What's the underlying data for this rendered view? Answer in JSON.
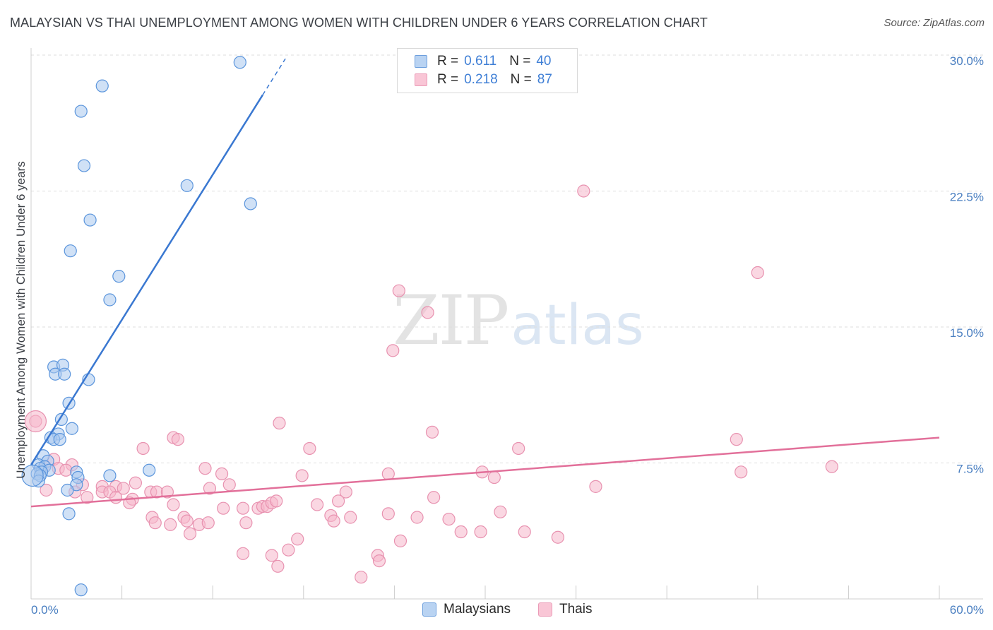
{
  "header": {
    "title": "MALAYSIAN VS THAI UNEMPLOYMENT AMONG WOMEN WITH CHILDREN UNDER 6 YEARS CORRELATION CHART",
    "source": "Source: ZipAtlas.com"
  },
  "watermark": {
    "zip": "ZIP",
    "atlas": "atlas"
  },
  "legend": {
    "rows": [
      {
        "r_label": "R =",
        "r_value": "0.611",
        "n_label": "N =",
        "n_value": "40"
      },
      {
        "r_label": "R =",
        "r_value": "0.218",
        "n_label": "N =",
        "n_value": "87"
      }
    ]
  },
  "bottom_legend": {
    "malaysians": "Malaysians",
    "thais": "Thais"
  },
  "colors": {
    "blue_fill": "#aac8ee",
    "blue_stroke": "#5b95dc",
    "blue_line": "#3a78d1",
    "pink_fill": "#f6b7cb",
    "pink_stroke": "#e892b0",
    "pink_line": "#e2709a",
    "axis_text": "#4a7fc1",
    "grid": "#dddddd"
  },
  "chart_data": {
    "type": "scatter",
    "title": "MALAYSIAN VS THAI UNEMPLOYMENT AMONG WOMEN WITH CHILDREN UNDER 6 YEARS CORRELATION CHART",
    "ylabel": "Unemployment Among Women with Children Under 6 years",
    "xlabel": "",
    "xlim": [
      0,
      60
    ],
    "ylim": [
      0,
      30
    ],
    "x_tick_labels": [
      "0.0%",
      "60.0%"
    ],
    "y_ticks": [
      7.5,
      15.0,
      22.5,
      30.0
    ],
    "y_tick_labels": [
      "7.5%",
      "15.0%",
      "22.5%",
      "30.0%"
    ],
    "series": [
      {
        "name": "Malaysians",
        "r": 0.611,
        "n": 40,
        "trend": {
          "x": [
            0.0,
            15.3
          ],
          "y": [
            7.4,
            27.8
          ],
          "dashed_to": [
            16.8,
            29.8
          ]
        },
        "points": [
          [
            13.8,
            29.6
          ],
          [
            4.7,
            28.3
          ],
          [
            3.3,
            26.9
          ],
          [
            3.5,
            23.9
          ],
          [
            10.3,
            22.8
          ],
          [
            14.5,
            21.8
          ],
          [
            3.9,
            20.9
          ],
          [
            2.6,
            19.2
          ],
          [
            5.8,
            17.8
          ],
          [
            5.2,
            16.5
          ],
          [
            1.5,
            12.8
          ],
          [
            2.1,
            12.9
          ],
          [
            1.6,
            12.4
          ],
          [
            2.2,
            12.4
          ],
          [
            3.8,
            12.1
          ],
          [
            2.5,
            10.8
          ],
          [
            2.0,
            9.9
          ],
          [
            2.7,
            9.4
          ],
          [
            1.8,
            9.1
          ],
          [
            1.3,
            8.9
          ],
          [
            1.5,
            8.8
          ],
          [
            1.9,
            8.8
          ],
          [
            0.8,
            7.9
          ],
          [
            1.1,
            7.6
          ],
          [
            0.5,
            7.4
          ],
          [
            0.9,
            7.3
          ],
          [
            0.6,
            7.2
          ],
          [
            1.2,
            7.1
          ],
          [
            0.7,
            7.0
          ],
          [
            0.4,
            6.9
          ],
          [
            0.6,
            6.8
          ],
          [
            0.5,
            6.5
          ],
          [
            3.0,
            7.0
          ],
          [
            7.8,
            7.1
          ],
          [
            5.2,
            6.8
          ],
          [
            3.1,
            6.7
          ],
          [
            3.0,
            6.3
          ],
          [
            2.4,
            6.0
          ],
          [
            2.5,
            4.7
          ],
          [
            3.3,
            0.5
          ]
        ]
      },
      {
        "name": "Thais",
        "r": 0.218,
        "n": 87,
        "trend": {
          "x": [
            0.0,
            60.0
          ],
          "y": [
            5.1,
            8.9
          ]
        },
        "points": [
          [
            0.3,
            9.8
          ],
          [
            36.5,
            22.5
          ],
          [
            48.0,
            18.0
          ],
          [
            24.3,
            17.0
          ],
          [
            26.2,
            15.8
          ],
          [
            23.9,
            13.7
          ],
          [
            16.4,
            9.7
          ],
          [
            26.5,
            9.2
          ],
          [
            9.4,
            8.9
          ],
          [
            9.7,
            8.8
          ],
          [
            46.6,
            8.8
          ],
          [
            7.4,
            8.3
          ],
          [
            18.4,
            8.3
          ],
          [
            32.2,
            8.3
          ],
          [
            52.9,
            7.3
          ],
          [
            1.5,
            7.7
          ],
          [
            1.8,
            7.2
          ],
          [
            0.9,
            7.3
          ],
          [
            2.7,
            7.4
          ],
          [
            11.5,
            7.2
          ],
          [
            12.6,
            6.9
          ],
          [
            17.9,
            6.8
          ],
          [
            23.6,
            6.9
          ],
          [
            29.8,
            7.0
          ],
          [
            30.6,
            6.7
          ],
          [
            46.9,
            7.0
          ],
          [
            37.3,
            6.2
          ],
          [
            3.4,
            6.3
          ],
          [
            4.7,
            6.2
          ],
          [
            5.6,
            6.2
          ],
          [
            6.1,
            6.1
          ],
          [
            6.9,
            6.4
          ],
          [
            11.8,
            6.1
          ],
          [
            13.1,
            6.3
          ],
          [
            2.9,
            5.9
          ],
          [
            4.7,
            5.9
          ],
          [
            5.2,
            5.9
          ],
          [
            6.7,
            5.5
          ],
          [
            7.9,
            5.9
          ],
          [
            8.3,
            5.9
          ],
          [
            9.0,
            5.9
          ],
          [
            20.8,
            5.9
          ],
          [
            26.6,
            5.6
          ],
          [
            3.7,
            5.6
          ],
          [
            5.6,
            5.6
          ],
          [
            6.5,
            5.3
          ],
          [
            18.9,
            5.2
          ],
          [
            20.3,
            5.4
          ],
          [
            15.0,
            5.0
          ],
          [
            15.3,
            5.1
          ],
          [
            15.6,
            5.1
          ],
          [
            15.9,
            5.3
          ],
          [
            16.2,
            5.4
          ],
          [
            9.4,
            5.2
          ],
          [
            12.7,
            5.0
          ],
          [
            14.0,
            5.0
          ],
          [
            31.0,
            4.8
          ],
          [
            23.6,
            4.7
          ],
          [
            8.0,
            4.5
          ],
          [
            10.1,
            4.5
          ],
          [
            19.8,
            4.6
          ],
          [
            21.1,
            4.5
          ],
          [
            25.5,
            4.5
          ],
          [
            27.6,
            4.4
          ],
          [
            20.0,
            4.3
          ],
          [
            8.2,
            4.2
          ],
          [
            10.3,
            4.3
          ],
          [
            11.1,
            4.1
          ],
          [
            11.7,
            4.2
          ],
          [
            14.2,
            4.2
          ],
          [
            9.2,
            4.1
          ],
          [
            10.5,
            3.6
          ],
          [
            28.4,
            3.7
          ],
          [
            29.7,
            3.7
          ],
          [
            32.6,
            3.7
          ],
          [
            34.8,
            3.4
          ],
          [
            17.6,
            3.3
          ],
          [
            24.4,
            3.2
          ],
          [
            17.0,
            2.7
          ],
          [
            14.0,
            2.5
          ],
          [
            15.9,
            2.4
          ],
          [
            22.9,
            2.4
          ],
          [
            23.0,
            2.1
          ],
          [
            16.3,
            1.8
          ],
          [
            21.8,
            1.2
          ],
          [
            1.0,
            6.0
          ],
          [
            2.3,
            7.1
          ]
        ]
      }
    ]
  }
}
